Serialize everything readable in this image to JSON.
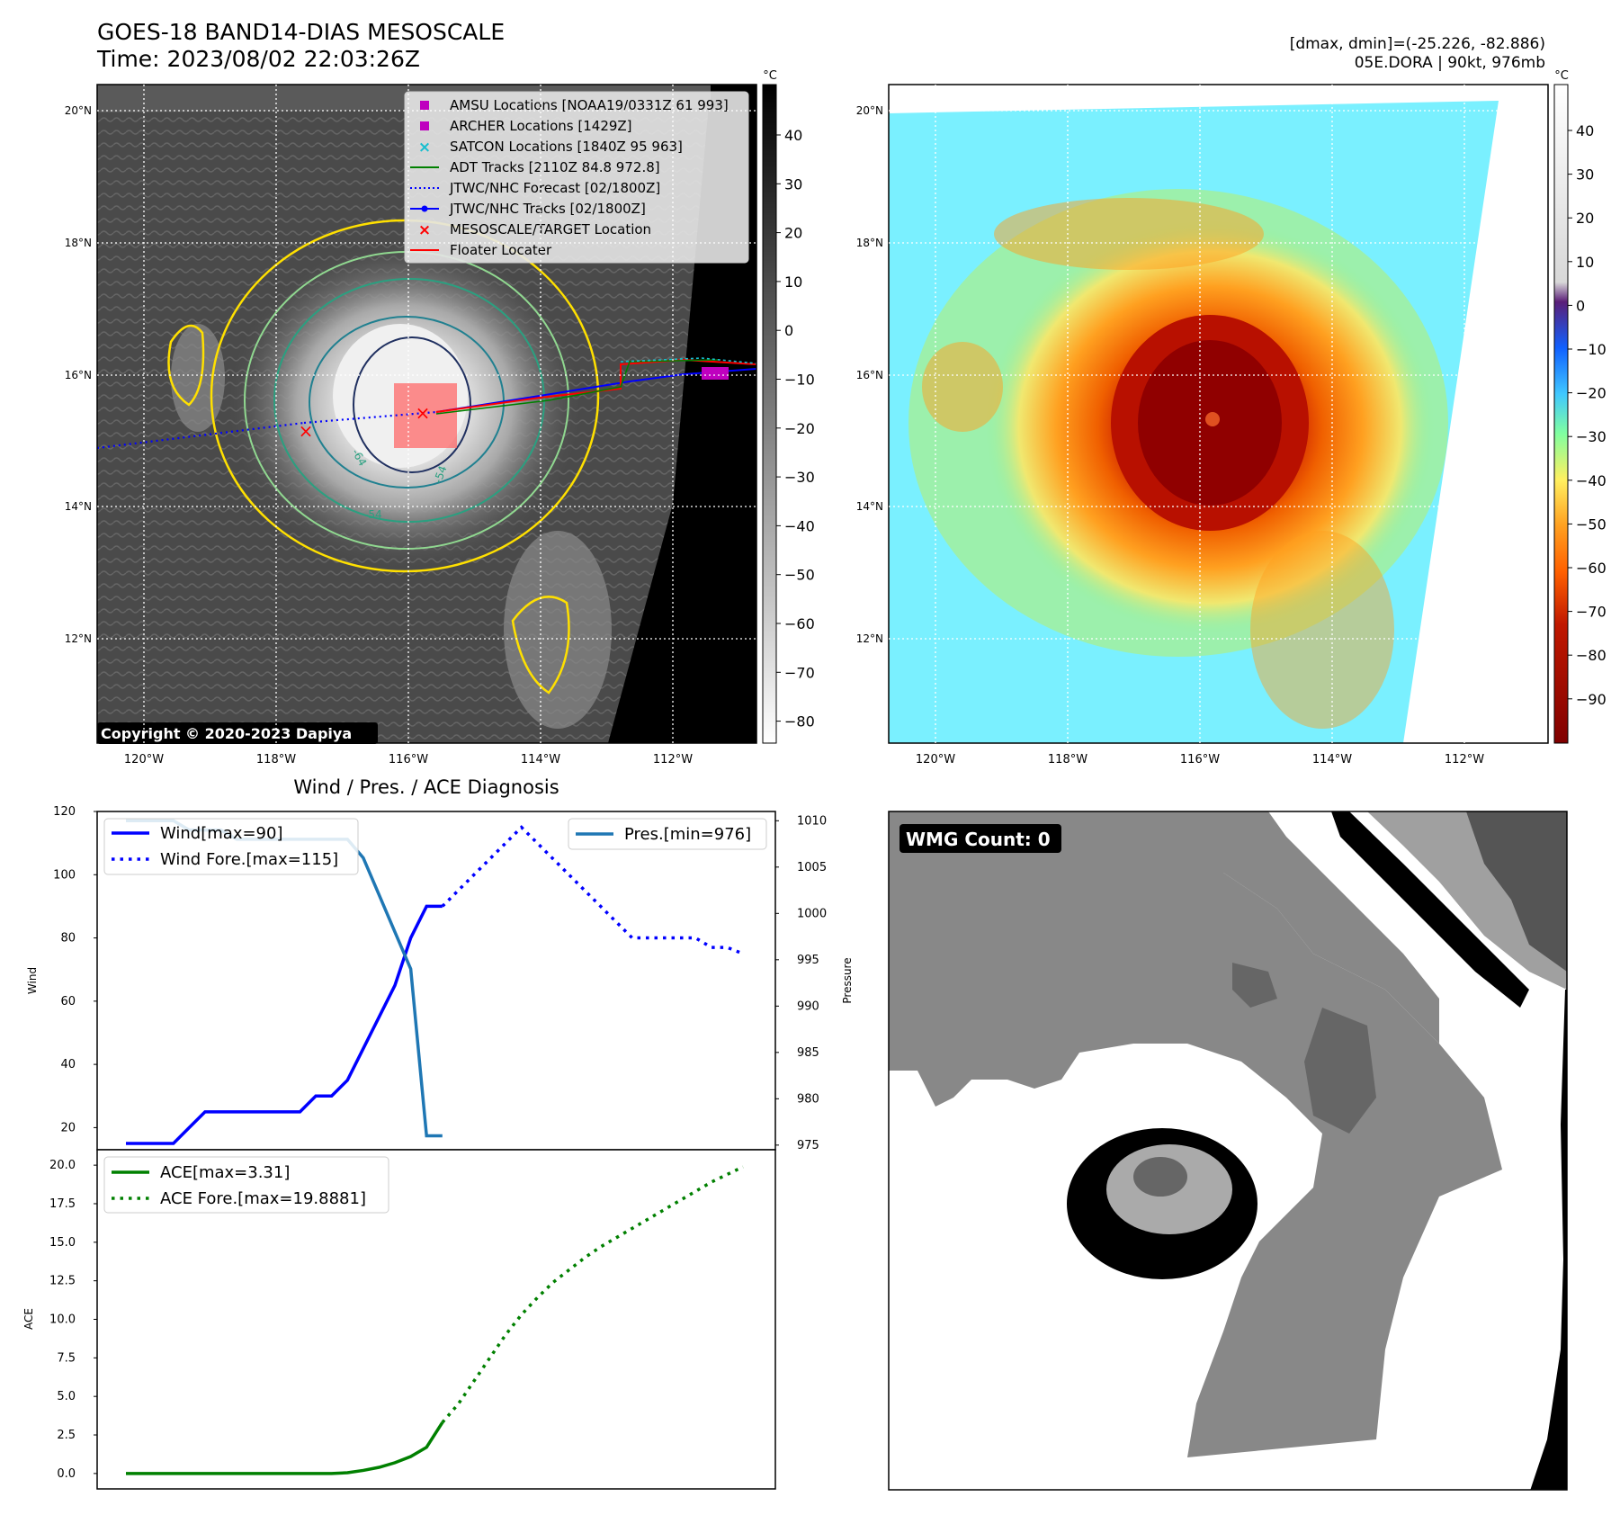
{
  "header": {
    "title_line1": "GOES-18 BAND14-DIAS MESOSCALE",
    "title_line2": "Time: 2023/08/02 22:03:26Z",
    "dmax_dmin": "[dmax, dmin]=(-25.226, -82.886)",
    "storm_info": "05E.DORA | 90kt, 976mb"
  },
  "map_axes": {
    "lat_ticks": [
      "20°N",
      "18°N",
      "16°N",
      "14°N",
      "12°N"
    ],
    "lon_ticks": [
      "120°W",
      "118°W",
      "116°W",
      "114°W",
      "112°W"
    ]
  },
  "left_map": {
    "copyright": "Copyright © 2020-2023 Dapiya",
    "contour_labels": [
      "-64",
      "-54",
      "-54"
    ],
    "colorbar_unit": "°C",
    "colorbar_ticks": [
      "40",
      "30",
      "20",
      "10",
      "0",
      "−10",
      "−20",
      "−30",
      "−40",
      "−50",
      "−60",
      "−70",
      "−80"
    ],
    "legend": [
      {
        "label": "AMSU Locations [NOAA19/0331Z 61 993]",
        "color": "#bf00bf",
        "marker": "square"
      },
      {
        "label": "ARCHER Locations [1429Z]",
        "color": "#bf00bf",
        "marker": "square"
      },
      {
        "label": "SATCON Locations [1840Z 95 963]",
        "color": "#17becf",
        "marker": "x"
      },
      {
        "label": "ADT Tracks [2110Z 84.8 972.8]",
        "color": "#008000",
        "marker": "line"
      },
      {
        "label": "JTWC/NHC Forecast [02/1800Z]",
        "color": "#0000ff",
        "marker": "dotted"
      },
      {
        "label": "JTWC/NHC Tracks [02/1800Z]",
        "color": "#0000ff",
        "marker": "line-dot"
      },
      {
        "label": "MESOSCALE/TARGET Location",
        "color": "#ff0000",
        "marker": "x"
      },
      {
        "label": "Floater Locater",
        "color": "#ff0000",
        "marker": "line"
      }
    ]
  },
  "right_map": {
    "colorbar_unit": "°C",
    "colorbar_ticks": [
      "40",
      "30",
      "20",
      "10",
      "0",
      "−10",
      "−20",
      "−30",
      "−40",
      "−50",
      "−60",
      "−70",
      "−80",
      "−90"
    ]
  },
  "chart_data": [
    {
      "type": "line",
      "title": "Wind / Pres. / ACE Diagnosis",
      "ylabel": "Wind",
      "ylabel_right": "Pressure",
      "ylim": [
        13,
        120
      ],
      "ylim_right": [
        974.5,
        1011
      ],
      "yticks": [
        20,
        40,
        60,
        80,
        100,
        120
      ],
      "yticks_right": [
        975,
        980,
        985,
        990,
        995,
        1000,
        1005,
        1010
      ],
      "x": [
        0,
        1,
        2,
        3,
        4,
        5,
        6,
        7,
        8,
        9,
        10,
        11,
        12,
        13,
        14,
        15,
        16,
        17,
        18,
        19,
        20,
        21,
        22,
        23,
        24,
        25,
        26,
        27,
        28,
        29,
        30,
        31,
        32,
        33,
        34,
        35,
        36,
        37,
        38,
        39
      ],
      "series": [
        {
          "name": "Wind[max=90]",
          "style": "solid",
          "color": "#0000ff",
          "axis": "left",
          "x": [
            0,
            1,
            2,
            3,
            4,
            5,
            6,
            7,
            8,
            9,
            10,
            11,
            12,
            13,
            14,
            15,
            16,
            17,
            18,
            19,
            20
          ],
          "values": [
            15,
            15,
            15,
            15,
            20,
            25,
            25,
            25,
            25,
            25,
            25,
            25,
            30,
            30,
            35,
            45,
            55,
            65,
            80,
            90,
            90
          ]
        },
        {
          "name": "Wind Fore.[max=115]",
          "style": "dotted",
          "color": "#0000ff",
          "axis": "left",
          "x": [
            20,
            21,
            22,
            23,
            24,
            25,
            26,
            27,
            28,
            29,
            30,
            31,
            32,
            33,
            34,
            35,
            36,
            37,
            38,
            39
          ],
          "values": [
            90,
            95,
            100,
            105,
            110,
            115,
            110,
            105,
            100,
            95,
            90,
            85,
            80,
            80,
            80,
            80,
            80,
            77,
            77,
            75
          ]
        },
        {
          "name": "Pres.[min=976]",
          "style": "solid",
          "color": "#1f77b4",
          "axis": "right",
          "x": [
            0,
            1,
            2,
            3,
            4,
            5,
            6,
            7,
            8,
            9,
            10,
            11,
            12,
            13,
            14,
            15,
            16,
            17,
            18,
            19,
            20
          ],
          "values": [
            1010,
            1010,
            1010,
            1010,
            1009,
            1009,
            1009,
            1008,
            1008,
            1008,
            1008,
            1008,
            1008,
            1008,
            1008,
            1006,
            1002,
            998,
            994,
            976,
            976
          ]
        }
      ]
    },
    {
      "type": "line",
      "ylabel": "ACE",
      "ylim": [
        -1,
        21
      ],
      "yticks": [
        0.0,
        2.5,
        5.0,
        7.5,
        10.0,
        12.5,
        15.0,
        17.5,
        20.0
      ],
      "series": [
        {
          "name": "ACE[max=3.31]",
          "style": "solid",
          "color": "#008000",
          "x": [
            0,
            1,
            2,
            3,
            4,
            5,
            6,
            7,
            8,
            9,
            10,
            11,
            12,
            13,
            14,
            15,
            16,
            17,
            18,
            19,
            20
          ],
          "values": [
            0,
            0,
            0,
            0,
            0,
            0,
            0,
            0,
            0,
            0,
            0,
            0,
            0,
            0,
            0.05,
            0.2,
            0.4,
            0.7,
            1.1,
            1.7,
            3.31
          ]
        },
        {
          "name": "ACE Fore.[max=19.8881]",
          "style": "dotted",
          "color": "#008000",
          "x": [
            20,
            21,
            22,
            23,
            24,
            25,
            26,
            27,
            28,
            29,
            30,
            31,
            32,
            33,
            34,
            35,
            36,
            37,
            38,
            39
          ],
          "values": [
            3.31,
            4.5,
            6.0,
            7.5,
            9.0,
            10.3,
            11.4,
            12.4,
            13.2,
            14.0,
            14.7,
            15.3,
            15.9,
            16.5,
            17.1,
            17.7,
            18.3,
            18.9,
            19.4,
            19.8881
          ]
        }
      ]
    }
  ],
  "wmg_panel": {
    "label": "WMG Count: 0"
  }
}
